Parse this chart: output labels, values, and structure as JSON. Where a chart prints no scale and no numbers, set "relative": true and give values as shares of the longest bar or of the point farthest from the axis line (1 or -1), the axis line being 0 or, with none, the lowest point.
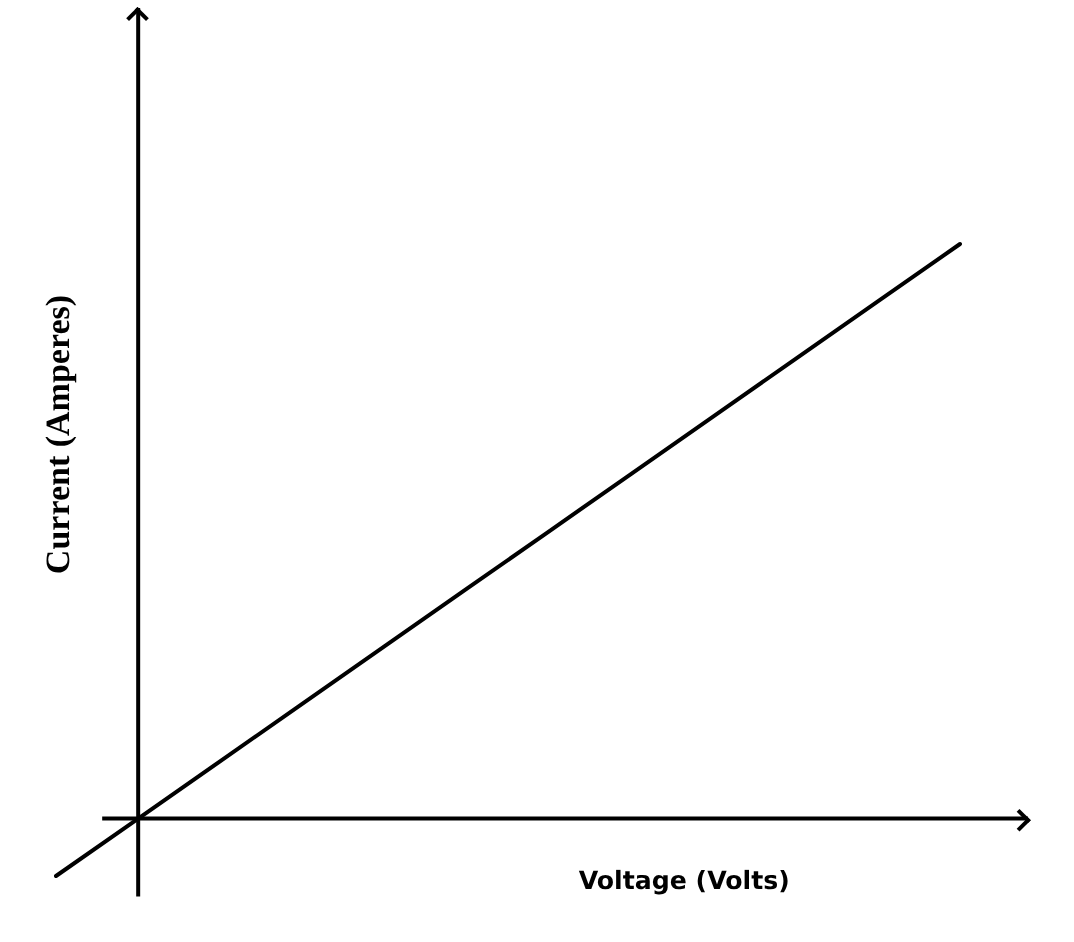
{
  "chart_data": {
    "type": "line",
    "xlabel": "Voltage (Volts)",
    "ylabel": "Current (Amperes)",
    "relative": true,
    "categories": [
      null,
      null,
      null,
      null,
      null,
      null,
      null,
      null,
      null,
      null,
      null,
      null
    ],
    "values": [
      -0.1,
      0,
      0.1,
      0.2,
      0.3,
      0.4,
      0.5,
      0.6,
      0.7,
      0.8,
      0.9,
      1
    ],
    "color": "#000000"
  }
}
